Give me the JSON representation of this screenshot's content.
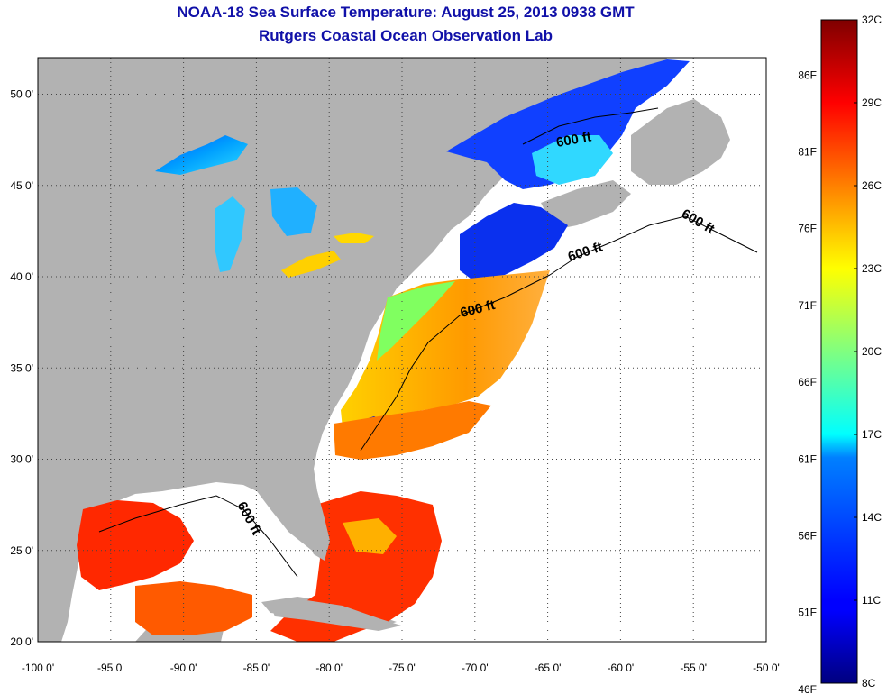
{
  "title": {
    "line1": "NOAA-18 Sea Surface Temperature:  August 25, 2013 0938 GMT",
    "line2": "Rutgers Coastal Ocean Observation Lab"
  },
  "map": {
    "lon_range": [
      -100,
      -50
    ],
    "lat_range": [
      20,
      52
    ],
    "lon_ticks": [
      "-100 0'",
      "-95 0'",
      "-90 0'",
      "-85 0'",
      "-80 0'",
      "-75 0'",
      "-70 0'",
      "-65 0'",
      "-60 0'",
      "-55 0'",
      "-50 0'"
    ],
    "lat_ticks": [
      "20 0'",
      "25 0'",
      "30 0'",
      "35 0'",
      "40 0'",
      "45 0'",
      "50 0'"
    ],
    "contour_labels": [
      "600 ft",
      "600 ft",
      "600 ft",
      "600 ft",
      "600 ft"
    ],
    "colors": {
      "land": "#b2b2b2",
      "no_data": "#ffffff",
      "grid": "#444444"
    }
  },
  "colorbar": {
    "celsius_labels": [
      "32C",
      "29C",
      "26C",
      "23C",
      "20C",
      "17C",
      "14C",
      "11C",
      "8C"
    ],
    "fahrenheit_labels": [
      "86F",
      "81F",
      "76F",
      "71F",
      "66F",
      "61F",
      "56F",
      "51F",
      "46F"
    ],
    "celsius_range": [
      8,
      32
    ],
    "colormap": "jet"
  }
}
